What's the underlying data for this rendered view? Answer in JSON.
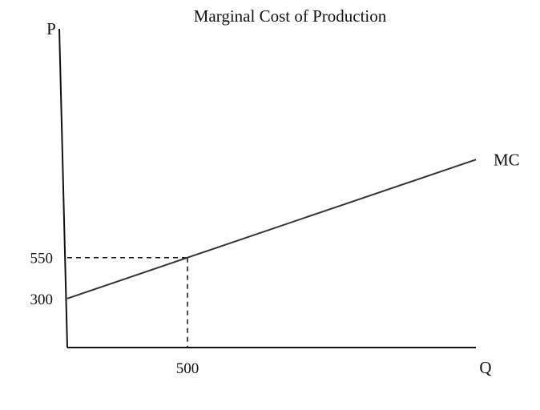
{
  "chart_data": {
    "type": "line",
    "title": "Marginal Cost of Production",
    "xlabel": "Q",
    "ylabel": "P",
    "series": [
      {
        "name": "MC",
        "x": [
          0,
          500,
          1700
        ],
        "y": [
          300,
          550,
          1150
        ]
      }
    ],
    "x_ticks": [
      {
        "value": 500,
        "label": "500"
      }
    ],
    "y_ticks": [
      {
        "value": 550,
        "label": "550"
      },
      {
        "value": 300,
        "label": "300"
      }
    ],
    "guides": [
      {
        "x": 500,
        "y": 550,
        "style": "dashed"
      }
    ],
    "xlim": [
      0,
      1700
    ],
    "ylim": [
      0,
      1950
    ],
    "grid": false,
    "legend": "none",
    "colors": {
      "line": "#333333",
      "axis": "#111111",
      "text": "#111111",
      "background": "#ffffff"
    }
  }
}
